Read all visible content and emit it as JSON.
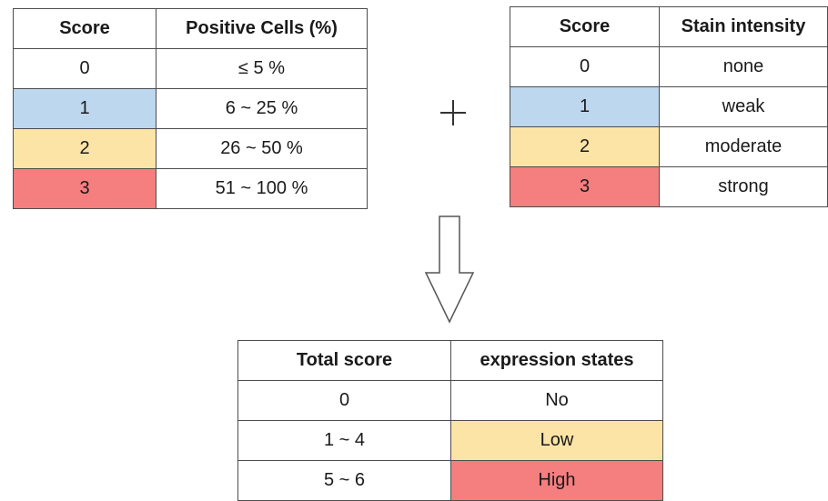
{
  "positive_table": {
    "headers": [
      "Score",
      "Positive Cells (%)"
    ],
    "rows": [
      {
        "score": "0",
        "value": "≤ 5 %",
        "color": ""
      },
      {
        "score": "1",
        "value": "6 ~ 25 %",
        "color": "#bcd7ee"
      },
      {
        "score": "2",
        "value": "26 ~ 50 %",
        "color": "#fbe4a6"
      },
      {
        "score": "3",
        "value": "51 ~ 100 %",
        "color": "#f57e7f"
      }
    ]
  },
  "operator": "+",
  "stain_table": {
    "headers": [
      "Score",
      "Stain intensity"
    ],
    "rows": [
      {
        "score": "0",
        "value": "none",
        "color": ""
      },
      {
        "score": "1",
        "value": "weak",
        "color": "#bcd7ee"
      },
      {
        "score": "2",
        "value": "moderate",
        "color": "#fbe4a6"
      },
      {
        "score": "3",
        "value": "strong",
        "color": "#f57e7f"
      }
    ]
  },
  "total_table": {
    "headers": [
      "Total score",
      "expression states"
    ],
    "rows": [
      {
        "score": "0",
        "value": "No",
        "color": ""
      },
      {
        "score": "1 ~ 4",
        "value": "Low",
        "color": "#fbe4a6"
      },
      {
        "score": "5 ~ 6",
        "value": "High",
        "color": "#f57e7f"
      }
    ]
  },
  "colors": {
    "blue": "#bcd7ee",
    "yellow": "#fbe4a6",
    "red": "#f57e7f"
  }
}
